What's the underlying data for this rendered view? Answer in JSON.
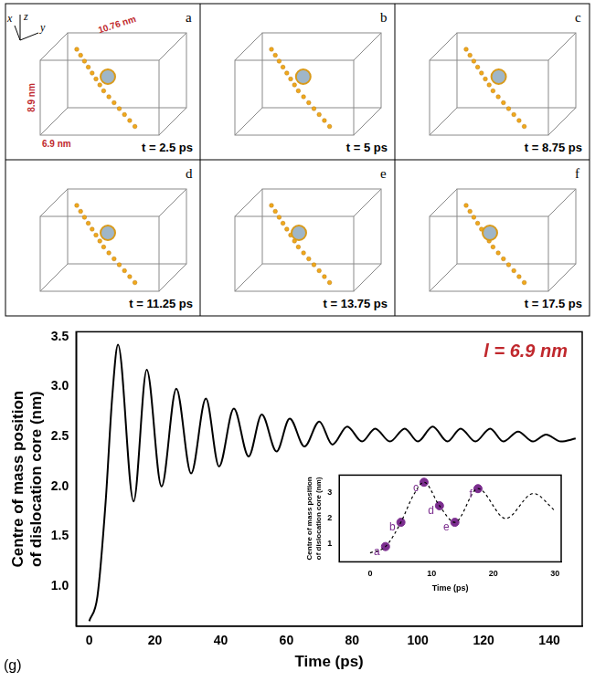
{
  "figure": {
    "axis_letters": [
      "x",
      "y",
      "z"
    ],
    "box_dimensions": [
      "10.76 nm",
      "8.9 nm",
      "6.9 nm"
    ],
    "panels": [
      {
        "letter": "a",
        "time": "t = 2.5 ps"
      },
      {
        "letter": "b",
        "time": "t = 5 ps"
      },
      {
        "letter": "c",
        "time": "t = 8.75 ps"
      },
      {
        "letter": "d",
        "time": "t = 11.25 ps"
      },
      {
        "letter": "e",
        "time": "t = 13.75 ps"
      },
      {
        "letter": "f",
        "time": "t = 17.5 ps"
      }
    ]
  },
  "chart_data": [
    {
      "type": "line",
      "panel_label": "(g)",
      "annotations": [
        "l = 6.9 nm"
      ],
      "x_label": "Time (ps)",
      "y_label": "Centre of mass position of dislocation core (nm)",
      "color": "#000000",
      "grid": false,
      "x": [
        0,
        2.5,
        5,
        7,
        8.75,
        13.5,
        17.5,
        22,
        26.5,
        31,
        35.5,
        39.5,
        44,
        48.5,
        52.5,
        57,
        61,
        65.5,
        70,
        74,
        78.5,
        83,
        87,
        91.5,
        96,
        100,
        104.5,
        109,
        113,
        117.5,
        122,
        126,
        130.5,
        135,
        139,
        143.5,
        148
      ],
      "values": [
        0.65,
        0.9,
        1.85,
        2.9,
        3.42,
        1.85,
        3.17,
        2.0,
        2.98,
        2.13,
        2.88,
        2.2,
        2.78,
        2.3,
        2.72,
        2.35,
        2.68,
        2.4,
        2.65,
        2.42,
        2.6,
        2.45,
        2.58,
        2.45,
        2.58,
        2.45,
        2.6,
        2.45,
        2.58,
        2.45,
        2.58,
        2.45,
        2.55,
        2.45,
        2.52,
        2.45,
        2.48
      ],
      "xlim": [
        -4,
        150
      ],
      "xticks": [
        0,
        20,
        40,
        60,
        80,
        100,
        120,
        140
      ],
      "ylim": [
        0.6,
        3.55
      ],
      "yticks": [
        {
          "value": 1,
          "label": "1.0"
        },
        {
          "value": 1.5,
          "label": "1.5"
        },
        {
          "value": 2,
          "label": "2.0"
        },
        {
          "value": 2.5,
          "label": "2.5"
        },
        {
          "value": 3,
          "label": "3.0"
        },
        {
          "value": 3.5,
          "label": "3.5"
        }
      ]
    },
    {
      "type": "line",
      "line_style": "dashed",
      "color": "#000000",
      "x_label": "Time (ps)",
      "y_label": "Centre of mass position of dislocation core (nm)",
      "x": [
        0,
        2.5,
        5,
        7,
        8.75,
        11.25,
        13.75,
        17.5,
        22,
        26.5,
        30
      ],
      "values": [
        0.65,
        0.9,
        1.85,
        2.9,
        3.42,
        2.5,
        1.85,
        3.17,
        2.0,
        2.98,
        2.3
      ],
      "markers": {
        "marker": "circle",
        "color": "#7b2d8e",
        "labels": [
          "a",
          "b",
          "c",
          "d",
          "e",
          "f"
        ],
        "x": [
          2.5,
          5,
          8.75,
          11.25,
          13.75,
          17.5
        ],
        "values": [
          0.9,
          1.85,
          3.42,
          2.5,
          1.85,
          3.17
        ]
      },
      "xlim": [
        -5,
        31
      ],
      "xticks": [
        0,
        10,
        20,
        30
      ],
      "ylim": [
        0.3,
        3.7
      ],
      "yticks": [
        1,
        2,
        3
      ]
    }
  ]
}
